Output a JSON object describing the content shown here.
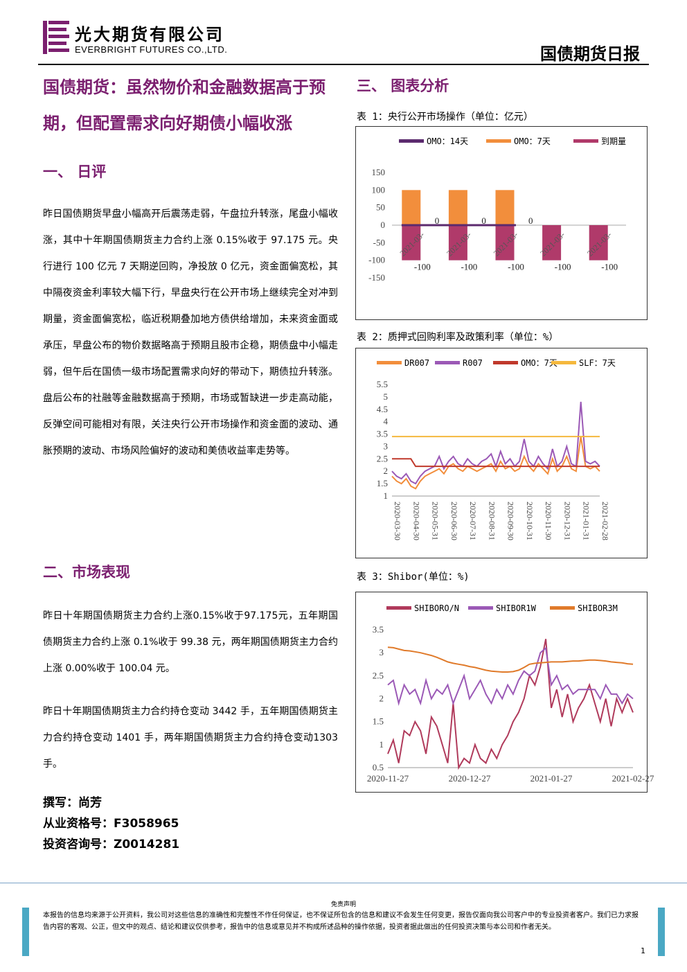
{
  "header": {
    "company_cn": "光大期货有限公司",
    "company_en": "EVERBRIGHT FUTURES CO.,LTD.",
    "report_type": "国债期货日报"
  },
  "title": "国债期货：虽然物价和金融数据高于预期，但配置需求向好期债小幅收涨",
  "sections": {
    "s1_heading": "一、  日评",
    "s1_text": "昨日国债期货早盘小幅高开后震荡走弱，午盘拉升转涨，尾盘小幅收涨，其中十年期国债期货主力合约上涨 0.15%收于 97.175 元。央行进行 100 亿元 7 天期逆回购，净投放 0 亿元，资金面偏宽松，其中隔夜资金利率较大幅下行，早盘央行在公开市场上继续完全对冲到期量，资金面偏宽松，临近税期叠加地方债供给增加，未来资金面或承压，早盘公布的物价数据略高于预期且股市企稳，期债盘中小幅走弱，但午后在国债一级市场配置需求向好的带动下，期债拉升转涨。盘后公布的社融等金融数据高于预期，市场或暂缺进一步走高动能，反弹空间可能相对有限，关注央行公开市场操作和资金面的波动、通胀预期的波动、市场风险偏好的波动和美债收益率走势等。",
    "s2_heading": "二、市场表现",
    "s2_text1": "昨日十年期国债期货主力合约上涨0.15%收于97.175元，五年期国债期货主力合约上涨 0.1%收于 99.38 元，两年期国债期货主力合约上涨 0.00%收于 100.04 元。",
    "s2_text2": "昨日十年期国债期货主力合约持仓变动 3442 手，五年期国债期货主力合约持仓变动 1401 手，两年期国债期货主力合约持仓变动1303 手。",
    "s3_heading": "三、  图表分析"
  },
  "signature": {
    "author": "撰写：尚芳",
    "license": "从业资格号：F3058965",
    "consult": "投资咨询号：Z0014281"
  },
  "chart_data": [
    {
      "type": "bar",
      "caption": "表 1：央行公开市场操作（单位：亿元）",
      "categories": [
        "2021-03-",
        "2021-03-",
        "2021-03-",
        "2021-03-",
        "2021-03-"
      ],
      "series": [
        {
          "name": "OMO：14天",
          "values": [
            0,
            0,
            0,
            0,
            0
          ],
          "color": "#5b2a6e"
        },
        {
          "name": "OMO：7天",
          "values": [
            100,
            100,
            100,
            0,
            0
          ],
          "color": "#f28e3c"
        },
        {
          "name": "到期量",
          "values": [
            -100,
            -100,
            -100,
            -100,
            -100
          ],
          "color": "#b03a6a"
        }
      ],
      "ylim": [
        -150,
        150
      ],
      "yticks": [
        "150",
        "100",
        "50",
        "0",
        "-50",
        "-100",
        "-150"
      ],
      "zero_labels": [
        "0",
        "0",
        "0"
      ],
      "neg_labels": [
        "-100",
        "-100",
        "-100",
        "-100",
        "-100"
      ],
      "legend": "top"
    },
    {
      "type": "line",
      "caption": "表 2：质押式回购利率及政策利率（单位：%）",
      "x_ticks": [
        "2020-03-30",
        "2020-04-30",
        "2020-05-31",
        "2020-06-30",
        "2020-07-31",
        "2020-08-31",
        "2020-09-30",
        "2020-10-31",
        "2020-11-30",
        "2020-12-31",
        "2021-01-31",
        "2021-02-28"
      ],
      "yticks": [
        "5.5",
        "5",
        "4.5",
        "4",
        "3.5",
        "3",
        "2.5",
        "2",
        "1.5",
        "1"
      ],
      "ylim": [
        1,
        5.5
      ],
      "series": [
        {
          "name": "DR007",
          "color": "#f28e3c",
          "values": [
            1.8,
            1.6,
            1.5,
            1.7,
            1.4,
            1.3,
            1.6,
            1.8,
            1.9,
            2.0,
            2.1,
            1.9,
            2.2,
            2.3,
            2.1,
            2.0,
            2.2,
            2.1,
            2.0,
            2.1,
            2.2,
            2.3,
            2.0,
            2.4,
            2.1,
            2.2,
            2.0,
            2.1,
            2.6,
            2.2,
            2.0,
            2.3,
            2.1,
            1.9,
            2.5,
            2.0,
            2.2,
            2.6,
            2.1,
            2.0,
            3.4,
            2.2,
            2.1,
            2.2,
            2.0
          ]
        },
        {
          "name": "R007",
          "color": "#9b59b6",
          "values": [
            2.0,
            1.8,
            1.7,
            1.9,
            1.6,
            1.5,
            1.8,
            2.0,
            2.1,
            2.2,
            2.6,
            2.1,
            2.4,
            2.6,
            2.3,
            2.2,
            2.5,
            2.3,
            2.2,
            2.4,
            2.5,
            2.7,
            2.2,
            2.8,
            2.3,
            2.5,
            2.2,
            2.4,
            3.3,
            2.4,
            2.2,
            2.6,
            2.3,
            2.1,
            2.9,
            2.2,
            2.4,
            3.0,
            2.3,
            2.2,
            4.8,
            2.4,
            2.3,
            2.4,
            2.2
          ]
        },
        {
          "name": "OMO：7天",
          "color": "#c0392b",
          "values": [
            2.5,
            2.5,
            2.5,
            2.5,
            2.5,
            2.2,
            2.2,
            2.2,
            2.2,
            2.2,
            2.2,
            2.2,
            2.2,
            2.2,
            2.2,
            2.2,
            2.2,
            2.2,
            2.2,
            2.2,
            2.2,
            2.2,
            2.2,
            2.2,
            2.2,
            2.2,
            2.2,
            2.2,
            2.2,
            2.2,
            2.2,
            2.2,
            2.2,
            2.2,
            2.2,
            2.2,
            2.2,
            2.2,
            2.2,
            2.2,
            2.2,
            2.2,
            2.2,
            2.2,
            2.2
          ]
        },
        {
          "name": "SLF：7天",
          "color": "#f5b83d",
          "values": [
            3.4,
            3.4,
            3.4,
            3.4,
            3.4,
            3.4,
            3.4,
            3.4,
            3.4,
            3.4,
            3.4,
            3.4,
            3.4,
            3.4,
            3.4,
            3.4,
            3.4,
            3.4,
            3.4,
            3.4,
            3.4,
            3.4,
            3.4,
            3.4,
            3.4,
            3.4,
            3.4,
            3.4,
            3.4,
            3.4,
            3.4,
            3.4,
            3.4,
            3.4,
            3.4,
            3.4,
            3.4,
            3.4,
            3.4,
            3.4,
            3.4,
            3.4,
            3.4,
            3.4,
            3.4
          ]
        }
      ],
      "legend": "top"
    },
    {
      "type": "line",
      "caption": "表 3：Shibor(单位：%)",
      "x_ticks": [
        "2020-11-27",
        "2020-12-27",
        "2021-01-27",
        "2021-02-27"
      ],
      "yticks": [
        "3.5",
        "3",
        "2.5",
        "2",
        "1.5",
        "1",
        "0.5"
      ],
      "ylim": [
        0.5,
        3.5
      ],
      "series": [
        {
          "name": "SHIBORO/N",
          "color": "#b03a5b",
          "values": [
            0.8,
            1.1,
            0.6,
            1.3,
            1.2,
            1.5,
            1.3,
            0.8,
            1.6,
            1.4,
            1.0,
            0.6,
            1.9,
            0.5,
            0.7,
            0.6,
            1.0,
            0.7,
            0.6,
            0.9,
            0.7,
            1.0,
            1.2,
            1.5,
            1.7,
            2.0,
            2.5,
            2.3,
            2.7,
            3.3,
            1.8,
            2.2,
            1.6,
            2.1,
            1.5,
            1.8,
            2.0,
            2.3,
            1.9,
            1.5,
            2.0,
            1.4,
            2.0,
            1.7,
            2.0,
            1.7
          ]
        },
        {
          "name": "SHIBOR1W",
          "color": "#9b59b6",
          "values": [
            2.3,
            2.4,
            1.9,
            2.3,
            2.1,
            2.2,
            1.9,
            2.4,
            2.0,
            2.2,
            2.1,
            2.3,
            1.9,
            2.2,
            2.5,
            2.0,
            2.2,
            2.4,
            2.1,
            1.9,
            2.2,
            2.0,
            2.3,
            2.1,
            2.4,
            2.6,
            2.5,
            2.6,
            3.0,
            3.1,
            2.3,
            2.5,
            2.2,
            2.3,
            2.1,
            2.2,
            2.2,
            2.2,
            2.2,
            2.0,
            2.3,
            2.1,
            2.1,
            1.9,
            2.1,
            2.0
          ]
        },
        {
          "name": "SHIBOR3M",
          "color": "#e07a2a",
          "values": [
            3.12,
            3.11,
            3.08,
            3.05,
            3.04,
            3.02,
            3.0,
            2.97,
            2.94,
            2.9,
            2.85,
            2.8,
            2.77,
            2.75,
            2.73,
            2.7,
            2.68,
            2.65,
            2.62,
            2.6,
            2.59,
            2.58,
            2.58,
            2.59,
            2.62,
            2.68,
            2.75,
            2.77,
            2.78,
            2.79,
            2.8,
            2.8,
            2.8,
            2.81,
            2.82,
            2.82,
            2.83,
            2.84,
            2.84,
            2.83,
            2.82,
            2.8,
            2.79,
            2.78,
            2.76,
            2.75
          ]
        }
      ],
      "legend": "top"
    }
  ],
  "footer": {
    "disclaimer_title": "免责声明",
    "disclaimer": "本报告的信息均来源于公开资料，我公司对这些信息的准确性和完整性不作任何保证，也不保证所包含的信息和建议不会发生任何变更，报告仅面向我公司客户中的专业投资者客户。我们已力求报告内容的客观、公正，但文中的观点、结论和建议仅供参考，报告中的信息或意见并不构成所述品种的操作依据，投资者据此做出的任何投资决策与本公司和作者无关。",
    "page_number": "1"
  }
}
